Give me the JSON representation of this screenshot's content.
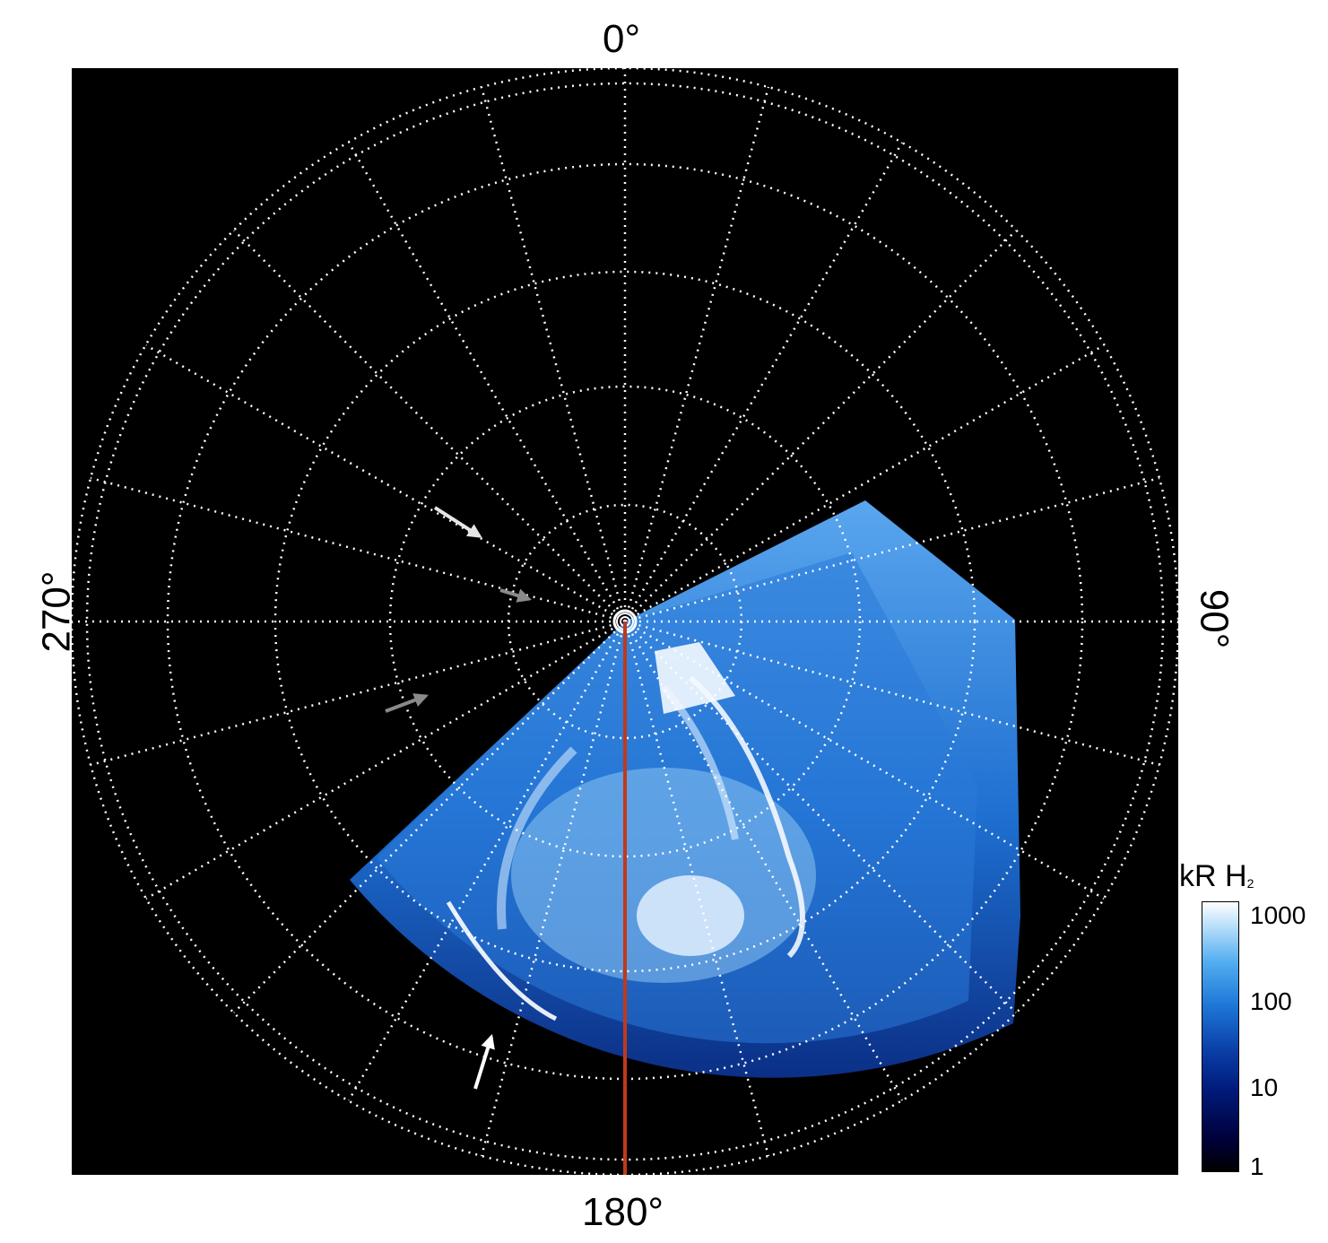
{
  "axis_labels": {
    "top": "0°",
    "right": "90°",
    "bottom": "180°",
    "left": "270°"
  },
  "colorbar": {
    "title": "kR H",
    "title_subscript": "2",
    "ticks": [
      "1000",
      "100",
      "10",
      "1"
    ],
    "scale": "log"
  },
  "colors": {
    "background": "#000000",
    "grid": "#ffffff",
    "meridian_line": "#c0391b",
    "aurora_low": "#0a2a8a",
    "aurora_high": "#ffffff"
  },
  "annotations": {
    "arrows": [
      "white-arrow",
      "white-arrow",
      "gray-arrow",
      "gray-arrow"
    ]
  }
}
